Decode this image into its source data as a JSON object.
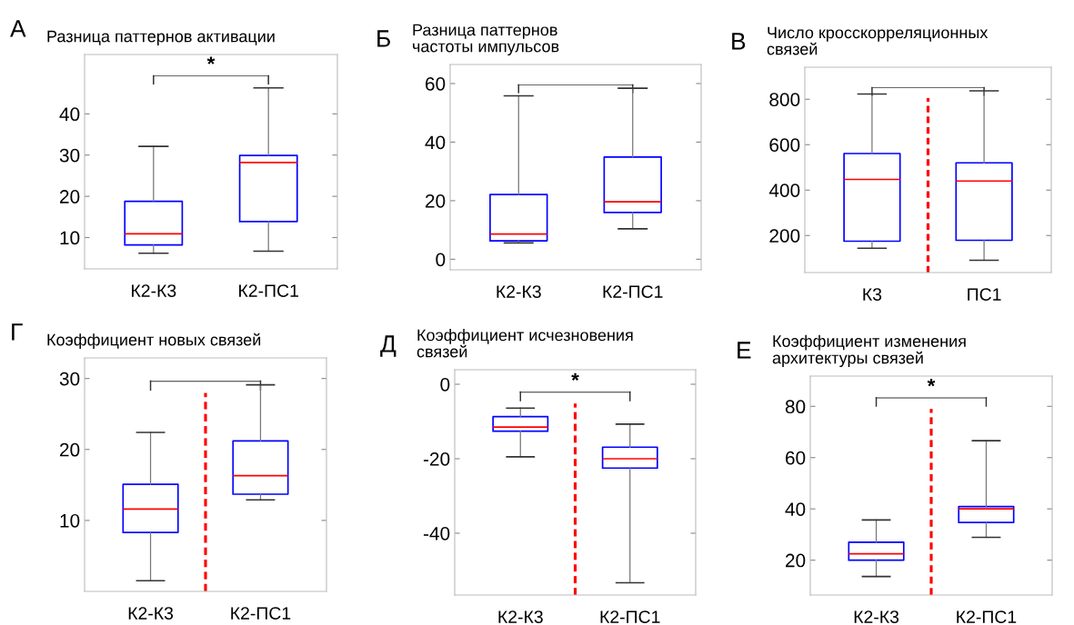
{
  "chart_data": [
    {
      "type": "box",
      "title": "Разница паттернов активации",
      "annotations": [
        "А",
        "*"
      ],
      "categories": [
        "К2-К3",
        "К2-ПС1"
      ],
      "ylim": [
        2.4,
        54.4
      ],
      "yticks": [
        10,
        20,
        30,
        40
      ],
      "series": [
        {
          "color": "#0000ff",
          "boxes": [
            {
              "low": 6.2,
              "q1": 8.2,
              "median": 10.9,
              "q3": 18.8,
              "high": 32.1
            },
            {
              "low": 6.7,
              "q1": 13.9,
              "median": 28.2,
              "q3": 29.9,
              "high": 46.3
            }
          ]
        }
      ]
    },
    {
      "type": "box",
      "title": "Разница паттернов\nчастоты импульсов",
      "annotations": [
        "Б"
      ],
      "categories": [
        "К2-К3",
        "К2-ПС1"
      ],
      "ylim": [
        -3.6,
        66.5
      ],
      "yticks": [
        0,
        20,
        40,
        60
      ],
      "series": [
        {
          "color": "#0000ff",
          "boxes": [
            {
              "low": 5.6,
              "q1": 6.3,
              "median": 8.6,
              "q3": 22.1,
              "high": 55.8
            },
            {
              "low": 10.4,
              "q1": 16.0,
              "median": 19.6,
              "q3": 34.9,
              "high": 58.4
            }
          ]
        }
      ]
    },
    {
      "type": "box",
      "title": "Число кросскорреляционных\nсвязей",
      "annotations": [
        "В"
      ],
      "categories": [
        "К3",
        "ПС1"
      ],
      "ylim": [
        37,
        941
      ],
      "yticks": [
        200,
        400,
        600,
        800
      ],
      "series": [
        {
          "color": "#0000ff",
          "boxes": [
            {
              "low": 144,
              "q1": 175,
              "median": 447,
              "q3": 561,
              "high": 823
            },
            {
              "low": 91,
              "q1": 179,
              "median": 440,
              "q3": 520,
              "high": 837
            }
          ]
        }
      ]
    },
    {
      "type": "box",
      "title": "Коэффициент новых связей",
      "annotations": [
        "Г"
      ],
      "categories": [
        "К2-К3",
        "К2-ПС1"
      ],
      "ylim": [
        0,
        32.9
      ],
      "yticks": [
        10,
        20,
        30
      ],
      "series": [
        {
          "color": "#0000ff",
          "boxes": [
            {
              "low": 1.5,
              "q1": 8.3,
              "median": 11.6,
              "q3": 15.1,
              "high": 22.4
            },
            {
              "low": 12.9,
              "q1": 13.7,
              "median": 16.3,
              "q3": 21.2,
              "high": 29.1
            }
          ]
        }
      ]
    },
    {
      "type": "box",
      "title": "Коэффициент исчезновения\nсвязей",
      "annotations": [
        "Д",
        "*"
      ],
      "categories": [
        "К2-К3",
        "К2-ПС1"
      ],
      "ylim": [
        -56.6,
        3.9
      ],
      "yticks": [
        {
          "value": -40,
          "label": "-40"
        },
        {
          "value": -20,
          "label": "-20"
        },
        0
      ],
      "series": [
        {
          "color": "#0000ff",
          "boxes": [
            {
              "low": -19.5,
              "q1": -12.6,
              "median": -11.5,
              "q3": -8.7,
              "high": -6.4
            },
            {
              "low": -53.3,
              "q1": -22.5,
              "median": -20,
              "q3": -16.9,
              "high": -10.7
            }
          ]
        }
      ]
    },
    {
      "type": "box",
      "title": "Коэффициент изменения\nархитектуры связей",
      "annotations": [
        "Е",
        "*"
      ],
      "categories": [
        "К2-К3",
        "К2-ПС1"
      ],
      "ylim": [
        6.4,
        91.8
      ],
      "yticks": [
        20,
        40,
        60,
        80
      ],
      "series": [
        {
          "color": "#0000ff",
          "boxes": [
            {
              "low": 13.6,
              "q1": 20,
              "median": 22.5,
              "q3": 27,
              "high": 35.7
            },
            {
              "low": 28.9,
              "q1": 34.7,
              "median": 40,
              "q3": 40.9,
              "high": 66.6
            }
          ]
        }
      ]
    }
  ]
}
